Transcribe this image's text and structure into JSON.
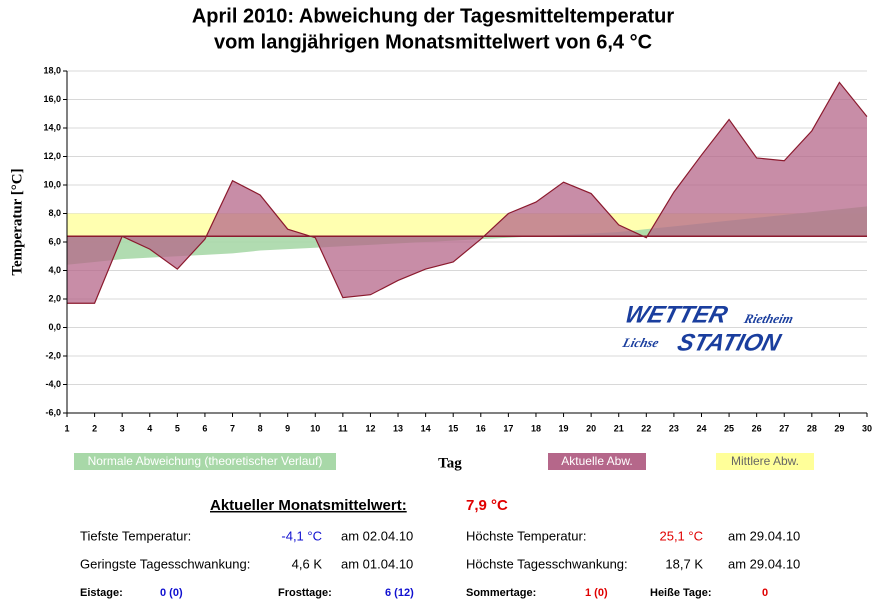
{
  "chart_data": {
    "type": "area",
    "title": [
      "April 2010: Abweichung der Tagesmitteltemperatur",
      "vom langjährigen Monatsmittelwert von 6,4 °C"
    ],
    "x_label": "Tag",
    "y_label": "Temperatur [°C]",
    "x": [
      1,
      2,
      3,
      4,
      5,
      6,
      7,
      8,
      9,
      10,
      11,
      12,
      13,
      14,
      15,
      16,
      17,
      18,
      19,
      20,
      21,
      22,
      23,
      24,
      25,
      26,
      27,
      28,
      29,
      30
    ],
    "xlim": [
      1,
      30
    ],
    "xticks": [
      1,
      2,
      3,
      4,
      5,
      6,
      7,
      8,
      9,
      10,
      11,
      12,
      13,
      14,
      15,
      16,
      17,
      18,
      19,
      20,
      21,
      22,
      23,
      24,
      25,
      26,
      27,
      28,
      29,
      30
    ],
    "ylim": [
      -6,
      18
    ],
    "yticks": [
      {
        "value": -6,
        "label": "-6,0"
      },
      {
        "value": -4,
        "label": "-4,0"
      },
      {
        "value": -2,
        "label": "-2,0"
      },
      {
        "value": 0,
        "label": "0,0"
      },
      {
        "value": 2,
        "label": "2,0"
      },
      {
        "value": 4,
        "label": "4,0"
      },
      {
        "value": 6,
        "label": "6,0"
      },
      {
        "value": 8,
        "label": "8,0"
      },
      {
        "value": 10,
        "label": "10,0"
      },
      {
        "value": 12,
        "label": "12,0"
      },
      {
        "value": 14,
        "label": "14,0"
      },
      {
        "value": 16,
        "label": "16,0"
      },
      {
        "value": 18,
        "label": "18,0"
      }
    ],
    "grid": true,
    "baseline": 6.4,
    "band": {
      "name": "Mittlere Abw.",
      "color": "#ffffb0",
      "values": [
        6.4,
        8.0
      ]
    },
    "series": [
      {
        "name": "Normale Abweichung (theoretischer Verlauf)",
        "color": "#a8d8a8",
        "values": [
          4.4,
          4.6,
          4.8,
          4.9,
          5.0,
          5.1,
          5.2,
          5.4,
          5.5,
          5.6,
          5.7,
          5.8,
          5.9,
          6.0,
          6.1,
          6.2,
          6.3,
          6.4,
          6.5,
          6.6,
          6.7,
          6.9,
          7.1,
          7.3,
          7.5,
          7.7,
          7.9,
          8.1,
          8.3,
          8.5
        ]
      },
      {
        "name": "Aktuelle Abw.",
        "color": "#b5678a",
        "values": [
          1.7,
          1.7,
          6.4,
          5.5,
          4.1,
          6.2,
          10.3,
          9.3,
          6.9,
          6.3,
          2.1,
          2.3,
          3.3,
          4.1,
          4.6,
          6.2,
          8.0,
          8.8,
          10.2,
          9.4,
          7.2,
          6.3,
          9.5,
          12.1,
          14.6,
          11.9,
          11.7,
          13.8,
          17.2,
          14.8
        ]
      }
    ]
  },
  "logo": {
    "top": "WETTER",
    "top_small": "Rietheim",
    "bottom_small": "Lichse",
    "bottom": "STATION"
  },
  "stats": {
    "heading": "Aktueller Monatsmittelwert:",
    "heading_value": "7,9 °C",
    "rows": [
      [
        "Tiefste Temperatur:",
        "-4,1 °C",
        "am 02.04.10",
        "Höchste Temperatur:",
        "25,1 °C",
        "am 29.04.10"
      ],
      [
        "Geringste Tagesschwankung:",
        "4,6 K",
        "am 01.04.10",
        "Höchste Tagesschwankung:",
        "18,7 K",
        "am 29.04.10"
      ],
      [
        "Eistage:",
        "0 (0)",
        "Frosttage:",
        "6 (12)",
        "Sommertage:",
        "1 (0)",
        "Heiße Tage:",
        "0"
      ]
    ]
  }
}
